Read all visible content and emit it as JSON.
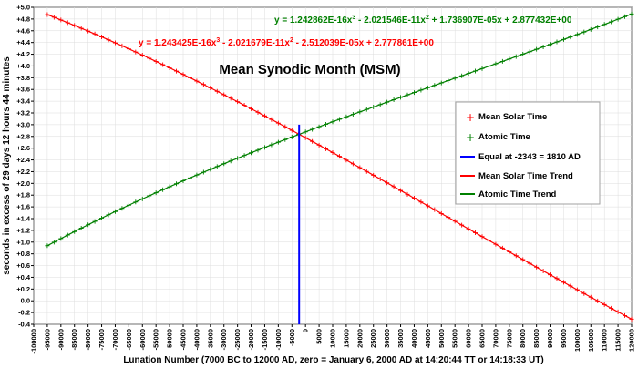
{
  "chart_data": {
    "type": "line",
    "title": "Mean Synodic Month (MSM)",
    "xlabel": "Lunation Number (7000 BC to 12000 AD, zero = January 6, 2000 AD at 14:20:44 TT or 14:18:33 UT)",
    "ylabel": "seconds in excess of 29 days 12 hours 44 minutes",
    "xlim": [
      -100000,
      120000
    ],
    "ylim": [
      -0.4,
      5.0
    ],
    "x_ticks": [
      "-100000",
      "-95000",
      "-90000",
      "-85000",
      "-80000",
      "-75000",
      "-70000",
      "-65000",
      "-60000",
      "-55000",
      "-50000",
      "-45000",
      "-40000",
      "-35000",
      "-30000",
      "-25000",
      "-20000",
      "-15000",
      "-10000",
      "-5000",
      "0",
      "5000",
      "10000",
      "15000",
      "20000",
      "25000",
      "30000",
      "35000",
      "40000",
      "45000",
      "50000",
      "55000",
      "60000",
      "65000",
      "70000",
      "75000",
      "80000",
      "85000",
      "90000",
      "95000",
      "100000",
      "105000",
      "110000",
      "115000",
      "120000"
    ],
    "y_ticks": [
      "-0.4",
      "-0.2",
      "0.0",
      "+0.2",
      "+0.4",
      "+0.6",
      "+0.8",
      "+1.0",
      "+1.2",
      "+1.4",
      "+1.6",
      "+1.8",
      "+2.0",
      "+2.2",
      "+2.4",
      "+2.6",
      "+2.8",
      "+3.0",
      "+3.2",
      "+3.4",
      "+3.6",
      "+3.8",
      "+4.0",
      "+4.2",
      "+4.4",
      "+4.6",
      "+4.8",
      "+5.0"
    ],
    "grid": true,
    "legend_position": "right",
    "annotations": {
      "atomic_equation": {
        "prefix": "y = 1.242862E-16x",
        "sup1": "3",
        "mid": " - 2.021546E-11x",
        "sup2": "2",
        "suffix": " + 1.736907E-05x + 2.877432E+00",
        "color": "#008000"
      },
      "solar_equation": {
        "prefix": "y = 1.243425E-16x",
        "sup1": "3",
        "mid": " - 2.021679E-11x",
        "sup2": "2",
        "suffix": " - 2.512039E-05x + 2.777861E+00",
        "color": "#ff0000"
      }
    },
    "equal_line": {
      "x": -2343,
      "y_range": [
        -0.4,
        3.0
      ],
      "color": "#0000ff"
    },
    "x_range": [
      -95000,
      120000
    ],
    "x_step": 2500,
    "series": [
      {
        "name": "Mean Solar Time",
        "kind": "markers",
        "marker": "+",
        "color": "#ff0000",
        "coefficients": [
          2.777861,
          -2.512039e-05,
          -2.021679e-11,
          1.243425e-16
        ]
      },
      {
        "name": "Atomic Time",
        "kind": "markers",
        "marker": "+",
        "color": "#008000",
        "coefficients": [
          2.877432,
          1.736907e-05,
          -2.021546e-11,
          1.242862e-16
        ]
      },
      {
        "name": "Equal at -2343 = 1810 AD",
        "kind": "vline",
        "color": "#0000ff"
      },
      {
        "name": "Mean Solar Time Trend",
        "kind": "line",
        "color": "#ff0000",
        "coefficients": [
          2.777861,
          -2.512039e-05,
          -2.021679e-11,
          1.243425e-16
        ]
      },
      {
        "name": "Atomic Time Trend",
        "kind": "line",
        "color": "#008000",
        "coefficients": [
          2.877432,
          1.736907e-05,
          -2.021546e-11,
          1.242862e-16
        ]
      }
    ]
  }
}
